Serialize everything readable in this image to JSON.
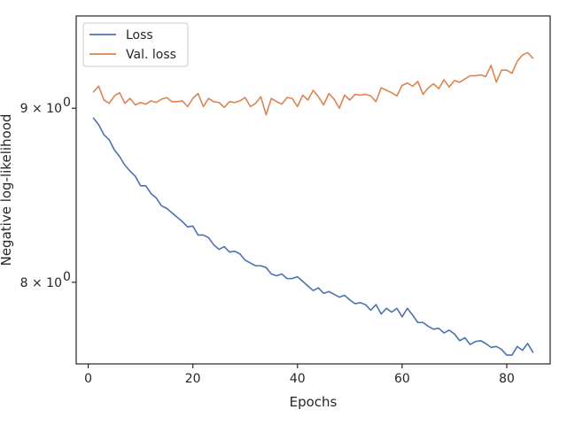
{
  "chart_data": {
    "type": "line",
    "xlabel": "Epochs",
    "ylabel": "Negative log-likelihood",
    "yscale": "log",
    "xlim": [
      -2.3,
      88.3
    ],
    "ylim": [
      7.57,
      9.58
    ],
    "grid": false,
    "legend_position": "top-left",
    "xticks": [
      {
        "value": 0,
        "label": "0"
      },
      {
        "value": 20,
        "label": "20"
      },
      {
        "value": 40,
        "label": "40"
      },
      {
        "value": 60,
        "label": "60"
      },
      {
        "value": 80,
        "label": "80"
      }
    ],
    "yticks": [
      {
        "value": 8,
        "label": "8 × 10",
        "exp": "0"
      },
      {
        "value": 9,
        "label": "9 × 10",
        "exp": "0"
      }
    ],
    "x": [
      1,
      2,
      3,
      4,
      5,
      6,
      7,
      8,
      9,
      10,
      11,
      12,
      13,
      14,
      15,
      16,
      17,
      18,
      19,
      20,
      21,
      22,
      23,
      24,
      25,
      26,
      27,
      28,
      29,
      30,
      31,
      32,
      33,
      34,
      35,
      36,
      37,
      38,
      39,
      40,
      41,
      42,
      43,
      44,
      45,
      46,
      47,
      48,
      49,
      50,
      51,
      52,
      53,
      54,
      55,
      56,
      57,
      58,
      59,
      60,
      61,
      62,
      63,
      64,
      65,
      66,
      67,
      68,
      69,
      70,
      71,
      72,
      73,
      74,
      75,
      76,
      77,
      78,
      79,
      80,
      81,
      82,
      83,
      84,
      85
    ],
    "series": [
      {
        "name": "Loss",
        "color": "#4c72b0",
        "values": [
          8.94,
          8.9,
          8.84,
          8.81,
          8.75,
          8.71,
          8.66,
          8.625,
          8.595,
          8.54,
          8.54,
          8.495,
          8.47,
          8.425,
          8.41,
          8.385,
          8.36,
          8.335,
          8.305,
          8.31,
          8.26,
          8.26,
          8.245,
          8.205,
          8.18,
          8.195,
          8.165,
          8.17,
          8.155,
          8.12,
          8.105,
          8.09,
          8.09,
          8.08,
          8.045,
          8.035,
          8.045,
          8.02,
          8.02,
          8.03,
          8.005,
          7.98,
          7.955,
          7.97,
          7.94,
          7.95,
          7.935,
          7.92,
          7.93,
          7.905,
          7.885,
          7.89,
          7.88,
          7.85,
          7.88,
          7.83,
          7.86,
          7.84,
          7.86,
          7.815,
          7.86,
          7.825,
          7.785,
          7.785,
          7.765,
          7.75,
          7.755,
          7.73,
          7.745,
          7.725,
          7.69,
          7.705,
          7.67,
          7.685,
          7.69,
          7.675,
          7.655,
          7.66,
          7.645,
          7.615,
          7.615,
          7.66,
          7.64,
          7.675,
          7.63
        ]
      },
      {
        "name": "Val. loss",
        "color": "#dd8452",
        "values": [
          9.1,
          9.135,
          9.05,
          9.03,
          9.075,
          9.095,
          9.03,
          9.06,
          9.02,
          9.035,
          9.025,
          9.045,
          9.035,
          9.055,
          9.065,
          9.04,
          9.04,
          9.045,
          9.01,
          9.06,
          9.09,
          9.01,
          9.06,
          9.04,
          9.035,
          9.005,
          9.04,
          9.035,
          9.045,
          9.065,
          9.01,
          9.03,
          9.07,
          8.96,
          9.06,
          9.04,
          9.025,
          9.065,
          9.06,
          9.01,
          9.08,
          9.05,
          9.11,
          9.07,
          9.02,
          9.09,
          9.055,
          9.0,
          9.08,
          9.05,
          9.085,
          9.08,
          9.085,
          9.075,
          9.04,
          9.125,
          9.11,
          9.095,
          9.075,
          9.14,
          9.155,
          9.135,
          9.165,
          9.085,
          9.125,
          9.15,
          9.12,
          9.175,
          9.13,
          9.17,
          9.16,
          9.18,
          9.2,
          9.2,
          9.205,
          9.195,
          9.265,
          9.16,
          9.235,
          9.235,
          9.215,
          9.29,
          9.33,
          9.345,
          9.31
        ]
      }
    ]
  }
}
